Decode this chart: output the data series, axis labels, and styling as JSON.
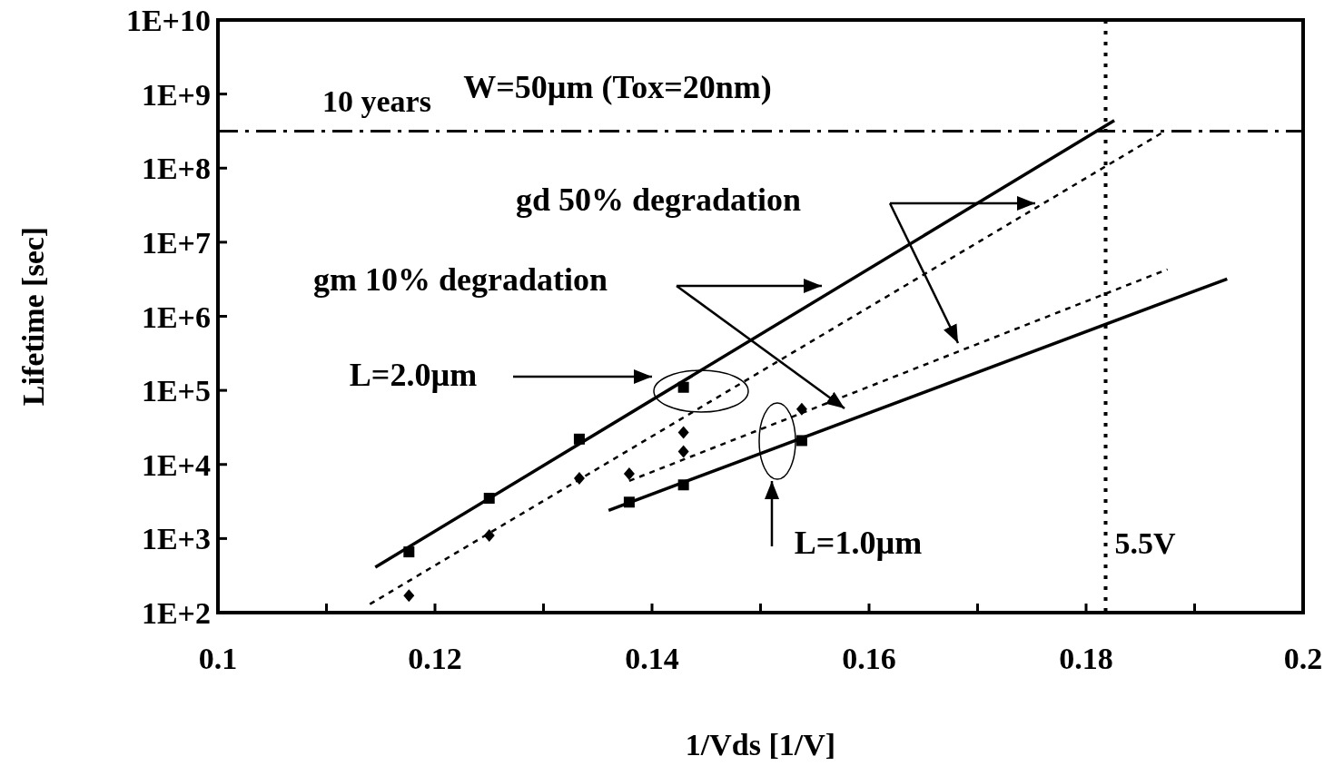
{
  "chart_data": {
    "type": "scatter",
    "xlabel": "1/Vds [1/V]",
    "ylabel": "Lifetime [sec]",
    "log": "y",
    "grid": false,
    "xlim": [
      0.1,
      0.2
    ],
    "ylim": [
      100,
      10000000000
    ],
    "xticks": [
      0.1,
      {
        "value": 0.11,
        "label": null
      },
      0.12,
      {
        "value": 0.13,
        "label": null
      },
      0.14,
      {
        "value": 0.15,
        "label": null
      },
      0.16,
      {
        "value": 0.17,
        "label": null
      },
      0.18,
      {
        "value": 0.19,
        "label": null
      },
      0.2
    ],
    "yticks": [
      {
        "value": 100,
        "label": "1E+2"
      },
      {
        "value": 1000,
        "label": "1E+3"
      },
      {
        "value": 10000,
        "label": "1E+4"
      },
      {
        "value": 100000,
        "label": "1E+5"
      },
      {
        "value": 1000000,
        "label": "1E+6"
      },
      {
        "value": 10000000,
        "label": "1E+7"
      },
      {
        "value": 100000000,
        "label": "1E+8"
      },
      {
        "value": 1000000000,
        "label": "1E+9"
      },
      {
        "value": 10000000000,
        "label": "1E+10"
      }
    ],
    "series": [
      {
        "marker": "square",
        "color": "#000000",
        "x": [
          0.1176,
          0.125,
          0.1333,
          0.1429
        ],
        "values": [
          660,
          3500,
          22000,
          110000
        ]
      },
      {
        "marker": "square",
        "color": "#000000",
        "x": [
          0.1379,
          0.1429,
          0.1538
        ],
        "values": [
          3100,
          5300,
          21000
        ]
      },
      {
        "marker": "diamond",
        "color": "#000000",
        "x": [
          0.1176,
          0.125,
          0.1333,
          0.1429
        ],
        "values": [
          170,
          1100,
          6500,
          27000
        ]
      },
      {
        "marker": "diamond",
        "color": "#000000",
        "x": [
          0.1379,
          0.1429,
          0.1538
        ],
        "values": [
          7500,
          15000,
          56000
        ]
      },
      {
        "type": "line",
        "line_style": "solid",
        "color": "#000000",
        "x": [
          0.1145,
          0.1826
        ],
        "values": [
          410,
          440000000
        ]
      },
      {
        "type": "line",
        "line_style": "solid",
        "color": "#000000",
        "x": [
          0.136,
          0.193
        ],
        "values": [
          2400,
          3200000
        ]
      },
      {
        "type": "line",
        "line_style": "dashed",
        "color": "#000000",
        "x": [
          0.114,
          0.187
        ],
        "values": [
          130,
          300000000
        ]
      },
      {
        "type": "line",
        "line_style": "dashed",
        "color": "#000000",
        "x": [
          0.1379,
          0.1875
        ],
        "values": [
          6000,
          4300000
        ]
      }
    ],
    "ref_lines": [
      {
        "axis": "y",
        "value": 315000000,
        "label": "10 years",
        "line_style": "dashdot"
      },
      {
        "axis": "x",
        "value": 0.1818,
        "label": "5.5V",
        "line_style": "dotted"
      }
    ],
    "annotations": [
      "W=50µm (Tox=20nm)",
      "gd 50% degradation",
      "gm 10% degradation",
      "L=2.0µm",
      "L=1.0µm"
    ]
  }
}
